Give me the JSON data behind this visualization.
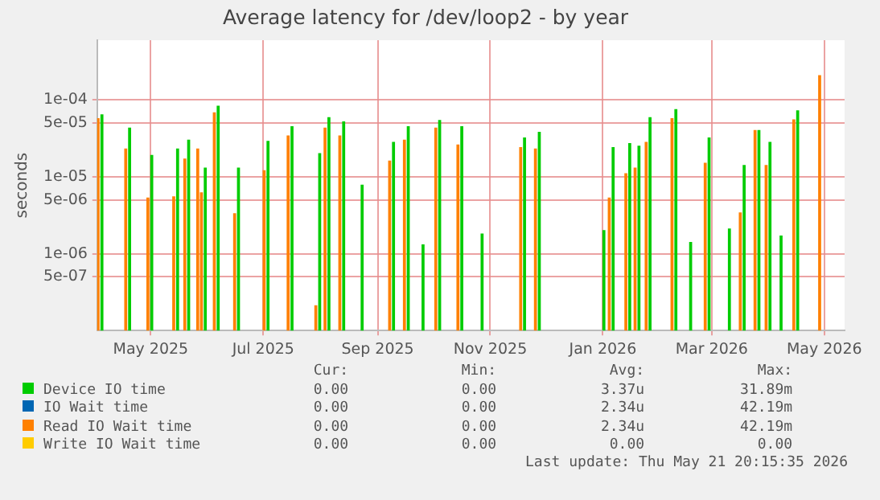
{
  "chart_data": {
    "type": "bar",
    "title": "Average latency for /dev/loop2 - by year",
    "ylabel": "seconds",
    "log": "y",
    "grid": true,
    "legend": "bottom",
    "xlim": [
      "2025-04-02",
      "2026-05-12"
    ],
    "xticks": [
      {
        "value": "2025-05-01",
        "label": "May 2025"
      },
      {
        "value": "2025-07-01",
        "label": "Jul 2025"
      },
      {
        "value": "2025-09-01",
        "label": "Sep 2025"
      },
      {
        "value": "2025-11-01",
        "label": "Nov 2025"
      },
      {
        "value": "2026-01-01",
        "label": "Jan 2026"
      },
      {
        "value": "2026-03-01",
        "label": "Mar 2026"
      },
      {
        "value": "2026-05-01",
        "label": "May 2026"
      }
    ],
    "ylim": [
      1e-07,
      0.0006
    ],
    "yticks": [
      {
        "value": 5e-07,
        "label": "5e-07"
      },
      {
        "value": 1e-06,
        "label": "1e-06"
      },
      {
        "value": 5e-06,
        "label": "5e-06"
      },
      {
        "value": 1e-05,
        "label": "1e-05"
      },
      {
        "value": 5e-05,
        "label": "5e-05"
      },
      {
        "value": 0.0001,
        "label": "1e-04"
      }
    ],
    "x": [
      "2025-04-03",
      "2025-04-18",
      "2025-04-30",
      "2025-05-14",
      "2025-05-20",
      "2025-05-27",
      "2025-05-29",
      "2025-06-05",
      "2025-06-16",
      "2025-07-02",
      "2025-07-15",
      "2025-07-30",
      "2025-08-04",
      "2025-08-12",
      "2025-08-22",
      "2025-09-08",
      "2025-09-16",
      "2025-09-24",
      "2025-10-03",
      "2025-10-15",
      "2025-10-26",
      "2025-11-18",
      "2025-11-26",
      "2025-12-31",
      "2026-01-05",
      "2026-01-14",
      "2026-01-19",
      "2026-01-25",
      "2026-02-08",
      "2026-02-16",
      "2026-02-26",
      "2026-03-09",
      "2026-03-17",
      "2026-03-25",
      "2026-03-31",
      "2026-04-06",
      "2026-04-15",
      "2026-04-29"
    ],
    "series": [
      {
        "name": "Device IO time",
        "color": "#00cc00",
        "values": [
          6.4e-05,
          4.3e-05,
          1.9e-05,
          2.3e-05,
          3e-05,
          null,
          1.3e-05,
          8.3e-05,
          1.3e-05,
          2.9e-05,
          4.5e-05,
          2e-05,
          5.9e-05,
          5.2e-05,
          7.8e-06,
          2.8e-05,
          4.5e-05,
          1.3e-06,
          5.4e-05,
          4.5e-05,
          1.8e-06,
          3.2e-05,
          3.8e-05,
          2e-06,
          2.4e-05,
          2.7e-05,
          2.5e-05,
          5.9e-05,
          7.5e-05,
          1.4e-06,
          3.2e-05,
          2.1e-06,
          1.4e-05,
          4e-05,
          2.8e-05,
          1.7e-06,
          7.2e-05,
          null
        ]
      },
      {
        "name": "IO Wait time",
        "color": "#0066b3",
        "values": [
          null,
          null,
          null,
          null,
          null,
          null,
          null,
          null,
          null,
          null,
          null,
          null,
          null,
          null,
          null,
          null,
          null,
          null,
          null,
          null,
          null,
          null,
          null,
          null,
          null,
          null,
          null,
          null,
          null,
          null,
          null,
          null,
          null,
          null,
          null,
          null,
          null,
          null
        ]
      },
      {
        "name": "Read IO Wait time",
        "color": "#ff8000",
        "values": [
          5.7e-05,
          2.3e-05,
          5.3e-06,
          5.5e-06,
          1.7e-05,
          2.3e-05,
          6.2e-06,
          6.8e-05,
          3.3e-06,
          1.2e-05,
          3.4e-05,
          2.1e-07,
          4.3e-05,
          3.4e-05,
          null,
          1.6e-05,
          3e-05,
          null,
          4.3e-05,
          2.6e-05,
          null,
          2.4e-05,
          2.3e-05,
          null,
          5.3e-06,
          1.1e-05,
          1.3e-05,
          2.8e-05,
          5.7e-05,
          null,
          1.5e-05,
          null,
          3.4e-06,
          4e-05,
          1.4e-05,
          null,
          5.5e-05,
          0.000207
        ]
      },
      {
        "name": "Write IO Wait time",
        "color": "#ffcc00",
        "values": [
          null,
          null,
          null,
          null,
          null,
          null,
          null,
          null,
          null,
          null,
          null,
          null,
          null,
          null,
          null,
          null,
          null,
          null,
          null,
          null,
          null,
          null,
          null,
          null,
          null,
          null,
          null,
          null,
          null,
          null,
          null,
          null,
          null,
          null,
          null,
          null,
          null,
          null
        ]
      }
    ],
    "annotations": [
      "Cur:",
      "Min:",
      "Avg:",
      "Max:",
      "0.00",
      "0.00",
      "3.37u",
      "31.89m",
      "0.00",
      "0.00",
      "2.34u",
      "42.19m",
      "0.00",
      "0.00",
      "2.34u",
      "42.19m",
      "0.00",
      "0.00",
      "0.00",
      "0.00",
      "Last update: Thu May 21 20:15:35 2026"
    ]
  }
}
